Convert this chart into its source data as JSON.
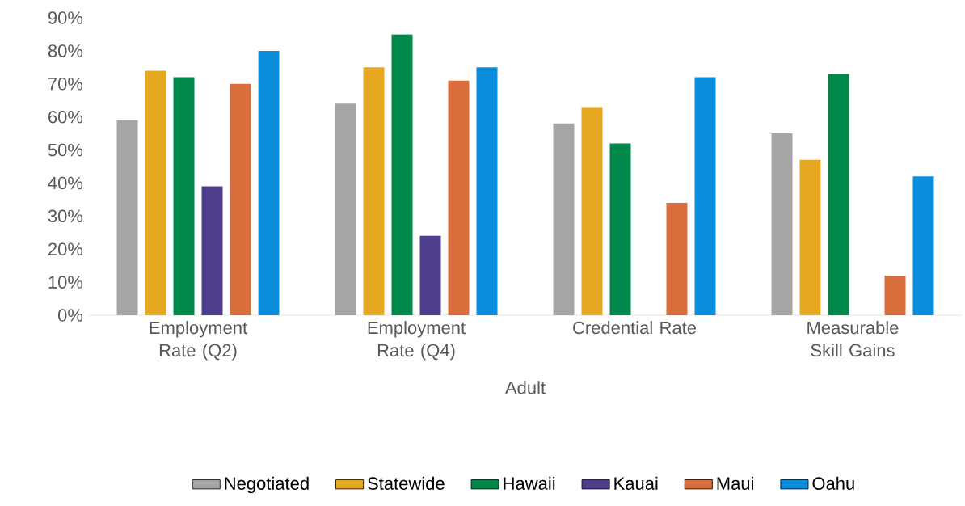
{
  "chart_data": {
    "type": "bar",
    "xlabel": "Adult",
    "categories": [
      "Employment Rate (Q2)",
      "Employment Rate (Q4)",
      "Credential Rate",
      "Measurable Skill Gains"
    ],
    "series": [
      {
        "name": "Negotiated",
        "color": "#a5a5a5",
        "values": [
          59,
          64,
          58,
          55
        ]
      },
      {
        "name": "Statewide",
        "color": "#e6a821",
        "values": [
          74,
          75,
          63,
          47
        ]
      },
      {
        "name": "Hawaii",
        "color": "#00884a",
        "values": [
          72,
          85,
          52,
          73
        ]
      },
      {
        "name": "Kauai",
        "color": "#4e3d8a",
        "values": [
          39,
          24,
          null,
          null
        ]
      },
      {
        "name": "Maui",
        "color": "#d96d3c",
        "values": [
          70,
          71,
          34,
          12
        ]
      },
      {
        "name": "Oahu",
        "color": "#0a8ddc",
        "values": [
          80,
          75,
          72,
          42
        ]
      }
    ],
    "ylim": [
      0,
      90
    ],
    "yticks": [
      {
        "value": 0,
        "label": "0%"
      },
      {
        "value": 10,
        "label": "10%"
      },
      {
        "value": 20,
        "label": "20%"
      },
      {
        "value": 30,
        "label": "30%"
      },
      {
        "value": 40,
        "label": "40%"
      },
      {
        "value": 50,
        "label": "50%"
      },
      {
        "value": 60,
        "label": "60%"
      },
      {
        "value": 70,
        "label": "70%"
      },
      {
        "value": 80,
        "label": "80%"
      },
      {
        "value": 90,
        "label": "90%"
      }
    ],
    "legend": "bottom"
  }
}
